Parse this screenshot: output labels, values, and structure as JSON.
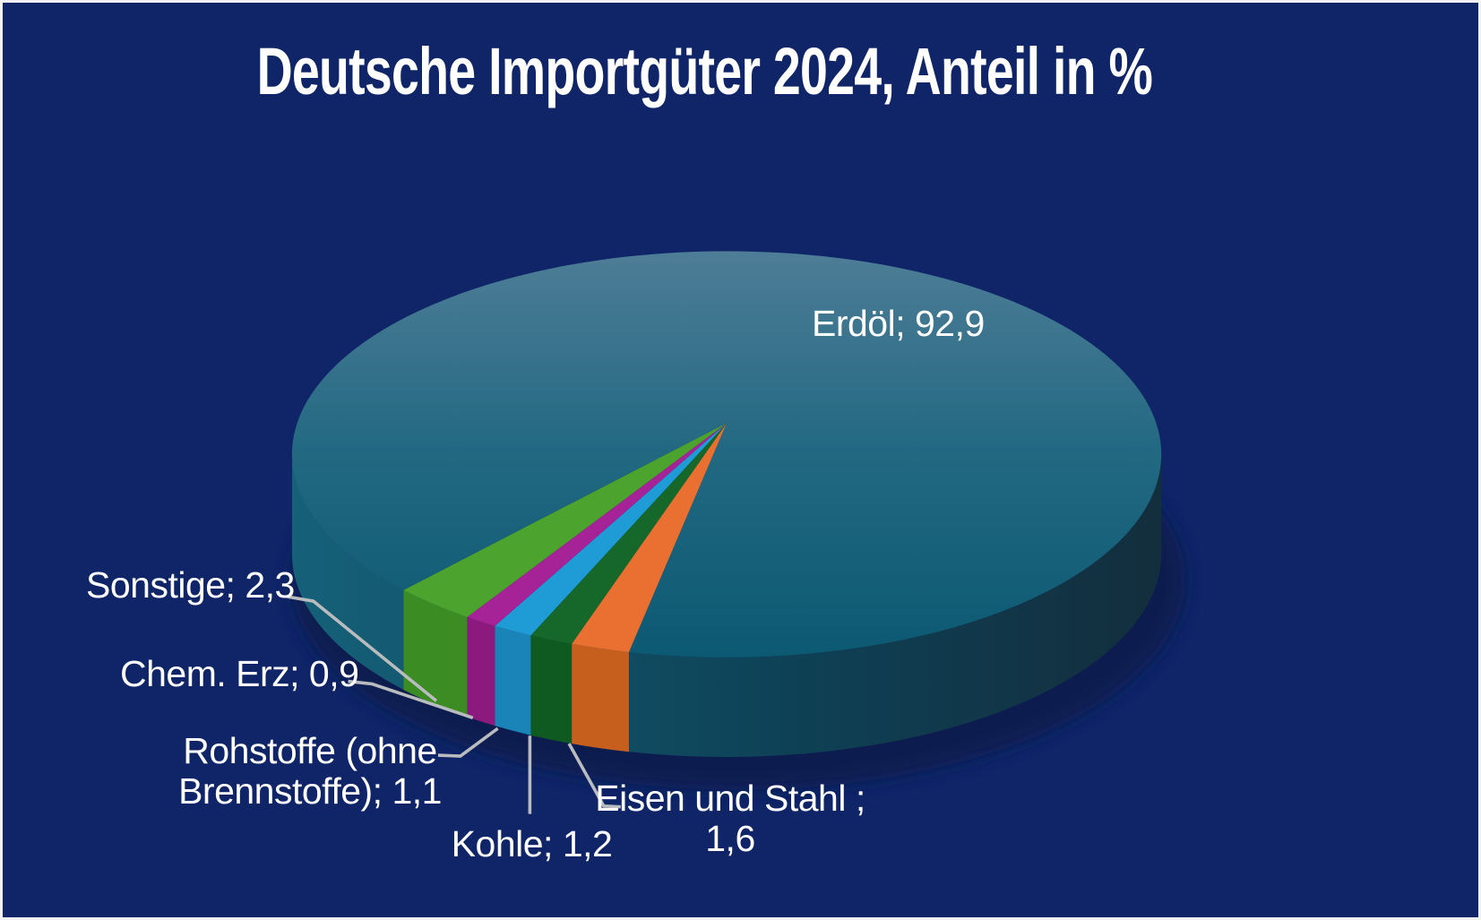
{
  "background_color": "#0f2568",
  "frame_color": "#f2f2f2",
  "text_color": "#ffffff",
  "leader_line_color": "#b9bcbe",
  "shadow_color": "#081a4d",
  "chart_data": {
    "type": "pie",
    "style": "3d",
    "title": "Deutsche Importgüter 2024, Anteil in %",
    "values_unit": "percent",
    "decimal_separator": "comma",
    "legend": "none",
    "slices": [
      {
        "id": "erdoel",
        "label": "Erdöl",
        "value": 92.9,
        "data_label_lines": [
          "Erdöl; 92,9"
        ],
        "color_top_light": "#4e7d97",
        "color_top_mid": "#226881",
        "color_top_dark": "#0c5973",
        "color_side_light": "#156179",
        "color_side_mid": "#0e4257",
        "color_side_dark": "#132e3d"
      },
      {
        "id": "eisen-und-stahl",
        "label": "Eisen und Stahl",
        "value": 1.6,
        "data_label_lines": [
          "Eisen und Stahl ;",
          "1,6"
        ],
        "color_top": "#e97030",
        "color_side": "#c65e1e"
      },
      {
        "id": "kohle",
        "label": "Kohle",
        "value": 1.2,
        "data_label_lines": [
          "Kohle; 1,2"
        ],
        "color_top": "#15682a",
        "color_side": "#0f5a20"
      },
      {
        "id": "rohstoffe",
        "label": "Rohstoffe (ohne Brennstoffe)",
        "value": 1.1,
        "data_label_lines": [
          "Rohstoffe (ohne",
          "Brennstoffe); 1,1"
        ],
        "color_top": "#1f9cd6",
        "color_side": "#1a84b8"
      },
      {
        "id": "chem-erz",
        "label": "Chem. Erz",
        "value": 0.9,
        "data_label_lines": [
          "Chem. Erz; 0,9"
        ],
        "color_top": "#a62297",
        "color_side": "#8c1a7e"
      },
      {
        "id": "sonstige",
        "label": "Sonstige",
        "value": 2.3,
        "data_label_lines": [
          "Sonstige; 2,3"
        ],
        "color_top": "#4ca32d",
        "color_side": "#3a8c23"
      }
    ]
  }
}
